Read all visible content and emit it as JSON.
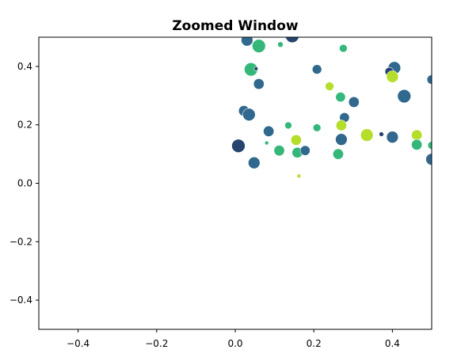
{
  "chart_data": {
    "type": "scatter",
    "title": "Zoomed Window",
    "xlabel": "",
    "ylabel": "",
    "xlim": [
      -0.5,
      0.5
    ],
    "ylim": [
      -0.5,
      0.5
    ],
    "x_ticks": [
      -0.4,
      -0.2,
      0.0,
      0.2,
      0.4
    ],
    "x_tick_labels": [
      "−0.4",
      "−0.2",
      "0.0",
      "0.2",
      "0.4"
    ],
    "y_ticks": [
      -0.4,
      -0.2,
      0.0,
      0.2,
      0.4
    ],
    "y_tick_labels": [
      "−0.4",
      "−0.2",
      "0.0",
      "0.2",
      "0.4"
    ],
    "grid": false,
    "legend": "none",
    "colormap": "viridis",
    "colors": {
      "dark": "#31688e",
      "mid": "#35b779",
      "light": "#b5de2b",
      "darkest": "#26456e"
    },
    "points": [
      {
        "x": 0.145,
        "y": 0.505,
        "size": 0.035,
        "color": "#26456e"
      },
      {
        "x": 0.03,
        "y": 0.49,
        "size": 0.03,
        "color": "#31688e"
      },
      {
        "x": 0.06,
        "y": 0.47,
        "size": 0.034,
        "color": "#35b779"
      },
      {
        "x": 0.115,
        "y": 0.475,
        "size": 0.014,
        "color": "#35b779"
      },
      {
        "x": 0.275,
        "y": 0.462,
        "size": 0.02,
        "color": "#35b779"
      },
      {
        "x": 0.04,
        "y": 0.39,
        "size": 0.034,
        "color": "#35b779"
      },
      {
        "x": 0.053,
        "y": 0.392,
        "size": 0.01,
        "color": "#26456e"
      },
      {
        "x": 0.06,
        "y": 0.34,
        "size": 0.027,
        "color": "#31688e"
      },
      {
        "x": 0.208,
        "y": 0.39,
        "size": 0.024,
        "color": "#31688e"
      },
      {
        "x": 0.405,
        "y": 0.395,
        "size": 0.032,
        "color": "#31688e"
      },
      {
        "x": 0.392,
        "y": 0.382,
        "size": 0.022,
        "color": "#26456e"
      },
      {
        "x": 0.4,
        "y": 0.365,
        "size": 0.03,
        "color": "#b5de2b"
      },
      {
        "x": 0.24,
        "y": 0.332,
        "size": 0.022,
        "color": "#b5de2b"
      },
      {
        "x": 0.5,
        "y": 0.355,
        "size": 0.024,
        "color": "#31688e"
      },
      {
        "x": 0.43,
        "y": 0.298,
        "size": 0.034,
        "color": "#31688e"
      },
      {
        "x": 0.268,
        "y": 0.295,
        "size": 0.025,
        "color": "#35b779"
      },
      {
        "x": 0.302,
        "y": 0.278,
        "size": 0.027,
        "color": "#31688e"
      },
      {
        "x": 0.022,
        "y": 0.248,
        "size": 0.027,
        "color": "#31688e"
      },
      {
        "x": 0.035,
        "y": 0.235,
        "size": 0.032,
        "color": "#31688e"
      },
      {
        "x": 0.278,
        "y": 0.225,
        "size": 0.025,
        "color": "#31688e"
      },
      {
        "x": 0.135,
        "y": 0.198,
        "size": 0.018,
        "color": "#35b779"
      },
      {
        "x": 0.208,
        "y": 0.19,
        "size": 0.02,
        "color": "#35b779"
      },
      {
        "x": 0.27,
        "y": 0.198,
        "size": 0.027,
        "color": "#b5de2b"
      },
      {
        "x": 0.085,
        "y": 0.178,
        "size": 0.027,
        "color": "#31688e"
      },
      {
        "x": 0.335,
        "y": 0.165,
        "size": 0.032,
        "color": "#b5de2b"
      },
      {
        "x": 0.372,
        "y": 0.168,
        "size": 0.012,
        "color": "#26456e"
      },
      {
        "x": 0.4,
        "y": 0.158,
        "size": 0.03,
        "color": "#31688e"
      },
      {
        "x": 0.462,
        "y": 0.165,
        "size": 0.027,
        "color": "#b5de2b"
      },
      {
        "x": 0.155,
        "y": 0.148,
        "size": 0.027,
        "color": "#b5de2b"
      },
      {
        "x": 0.27,
        "y": 0.15,
        "size": 0.03,
        "color": "#31688e"
      },
      {
        "x": 0.08,
        "y": 0.138,
        "size": 0.01,
        "color": "#35b779"
      },
      {
        "x": 0.008,
        "y": 0.128,
        "size": 0.034,
        "color": "#26456e"
      },
      {
        "x": 0.112,
        "y": 0.112,
        "size": 0.027,
        "color": "#35b779"
      },
      {
        "x": 0.158,
        "y": 0.105,
        "size": 0.027,
        "color": "#35b779"
      },
      {
        "x": 0.178,
        "y": 0.112,
        "size": 0.025,
        "color": "#31688e"
      },
      {
        "x": 0.262,
        "y": 0.1,
        "size": 0.027,
        "color": "#35b779"
      },
      {
        "x": 0.462,
        "y": 0.132,
        "size": 0.027,
        "color": "#35b779"
      },
      {
        "x": 0.5,
        "y": 0.13,
        "size": 0.02,
        "color": "#35b779"
      },
      {
        "x": 0.048,
        "y": 0.07,
        "size": 0.03,
        "color": "#31688e"
      },
      {
        "x": 0.5,
        "y": 0.082,
        "size": 0.03,
        "color": "#31688e"
      },
      {
        "x": 0.162,
        "y": 0.025,
        "size": 0.01,
        "color": "#b5de2b"
      }
    ]
  }
}
